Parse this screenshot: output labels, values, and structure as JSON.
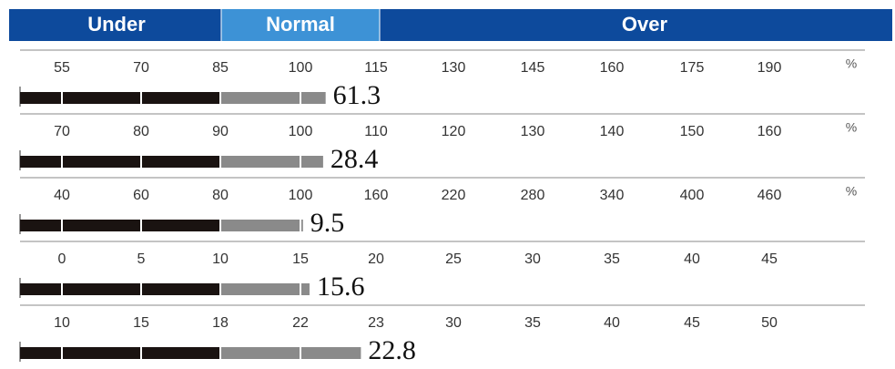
{
  "header": {
    "under": "Under",
    "normal": "Normal",
    "over": "Over"
  },
  "rows": [
    {
      "ticks": [
        55,
        70,
        85,
        100,
        115,
        130,
        145,
        160,
        175,
        190
      ],
      "unit": "%",
      "value": "61.3",
      "level": 105
    },
    {
      "ticks": [
        70,
        80,
        90,
        100,
        110,
        120,
        130,
        140,
        150,
        160
      ],
      "unit": "%",
      "value": "28.4",
      "level": 103
    },
    {
      "ticks": [
        40,
        60,
        80,
        100,
        160,
        220,
        280,
        340,
        400,
        460
      ],
      "unit": "%",
      "value": "9.5",
      "level": 102
    },
    {
      "ticks": [
        0,
        5,
        10,
        15,
        20,
        25,
        30,
        35,
        40,
        45
      ],
      "value": "15.6",
      "level": 15.6
    },
    {
      "ticks": [
        10,
        15,
        18,
        22,
        23,
        30,
        35,
        40,
        45,
        50
      ],
      "value": "22.8",
      "level": 22.8
    }
  ]
}
